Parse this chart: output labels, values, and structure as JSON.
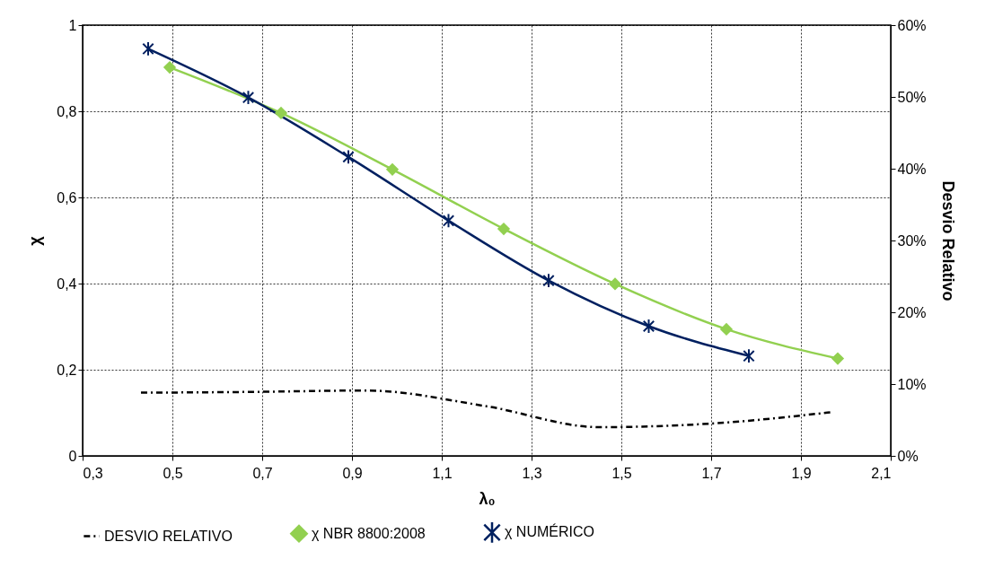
{
  "chart_data": {
    "type": "line",
    "xlabel": "λ₀",
    "ylabel": "χ",
    "y2label": "Desvio Relativo",
    "xlim": [
      0.3,
      2.1
    ],
    "xticks": [
      {
        "value": 0.3,
        "label": "0,3"
      },
      {
        "value": 0.5,
        "label": "0,5"
      },
      {
        "value": 0.7,
        "label": "0,7"
      },
      {
        "value": 0.9,
        "label": "0,9"
      },
      {
        "value": 1.1,
        "label": "1,1"
      },
      {
        "value": 1.3,
        "label": "1,3"
      },
      {
        "value": 1.5,
        "label": "1,5"
      },
      {
        "value": 1.7,
        "label": "1,7"
      },
      {
        "value": 1.9,
        "label": "1,9"
      },
      {
        "value": 2.1,
        "label": "2,1"
      }
    ],
    "ylim": [
      0,
      1
    ],
    "yticks": [
      0,
      {
        "value": 0.2,
        "label": "0,2"
      },
      {
        "value": 0.4,
        "label": "0,4"
      },
      {
        "value": 0.6,
        "label": "0,6"
      },
      {
        "value": 0.8,
        "label": "0,8"
      },
      1
    ],
    "y2lim": [
      0,
      60
    ],
    "y2ticks": [
      {
        "value": 0,
        "label": "0%"
      },
      {
        "value": 10,
        "label": "10%"
      },
      {
        "value": 20,
        "label": "20%"
      },
      {
        "value": 30,
        "label": "30%"
      },
      {
        "value": 40,
        "label": "40%"
      },
      {
        "value": 50,
        "label": "50%"
      },
      {
        "value": 60,
        "label": "60%"
      }
    ],
    "grid": true,
    "legend": "bottom",
    "series": [
      {
        "name": "DESVIO RELATIVO",
        "color": "#000000",
        "axis": "y2",
        "line_style": "dashdot",
        "marker": "none",
        "x": [
          0.43,
          0.67,
          0.93,
          1.2,
          1.45,
          1.7,
          1.97
        ],
        "values": [
          8.8,
          8.9,
          9.1,
          6.9,
          4.0,
          4.5,
          6.1
        ]
      },
      {
        "name": "χ NBR 8800:2008",
        "color": "#92d050",
        "marker": "diamond",
        "x": [
          0.494,
          0.742,
          0.99,
          1.238,
          1.486,
          1.734,
          1.982
        ],
        "values": [
          0.902,
          0.796,
          0.665,
          0.527,
          0.399,
          0.294,
          0.226
        ]
      },
      {
        "name": "χ NUMÉRICO",
        "color": "#002060",
        "marker": "cross",
        "x": [
          0.446,
          0.669,
          0.892,
          1.115,
          1.338,
          1.561,
          1.784
        ],
        "values": [
          0.945,
          0.832,
          0.694,
          0.546,
          0.407,
          0.301,
          0.232
        ]
      }
    ]
  }
}
